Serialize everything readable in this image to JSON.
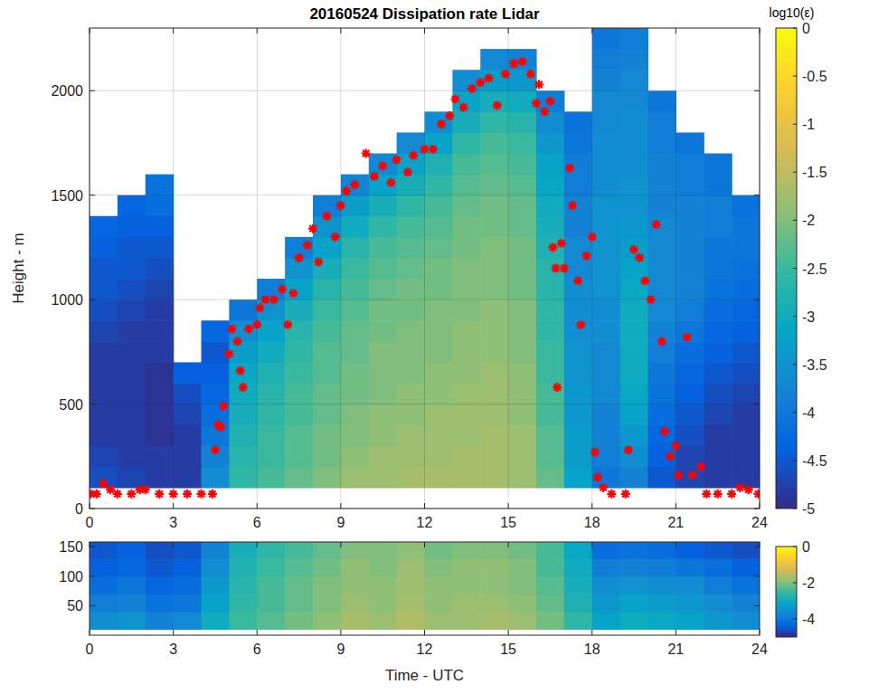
{
  "chart_data": [
    {
      "type": "heatmap",
      "title": "20160524 Dissipation rate Lidar",
      "y_label": "Height - m",
      "xlim": [
        0,
        24
      ],
      "ylim": [
        0,
        2300
      ],
      "xticks": [
        0,
        3,
        6,
        9,
        12,
        15,
        18,
        21,
        24
      ],
      "yticks": [
        0,
        500,
        1000,
        1500,
        2000
      ],
      "grid": true,
      "x_edges": [
        0,
        1,
        2,
        3,
        4,
        5,
        6,
        7,
        8,
        9,
        10,
        11,
        12,
        13,
        14,
        15,
        16,
        17,
        18,
        19,
        20,
        21,
        22,
        23,
        24
      ],
      "y_edges": [
        100,
        200,
        300,
        400,
        500,
        600,
        700,
        800,
        900,
        1000,
        1100,
        1200,
        1300,
        1400,
        1500,
        1600,
        1700,
        1800,
        1900,
        2000,
        2100,
        2200,
        2300
      ],
      "z": [
        [
          -4.6,
          -4.7,
          -4.8,
          -4.8,
          -4.8,
          -4.8,
          -4.8,
          -4.7,
          -4.6,
          -4.5,
          -4.5,
          -4.4,
          -4.3,
          null,
          null,
          null,
          null,
          null,
          null,
          null,
          null,
          null
        ],
        [
          -4.7,
          -4.8,
          -4.8,
          -4.8,
          -4.8,
          -4.8,
          -4.8,
          -4.8,
          -4.7,
          -4.6,
          -4.5,
          -4.5,
          -4.4,
          -4.3,
          null,
          null,
          null,
          null,
          null,
          null,
          null,
          null
        ],
        [
          -4.8,
          -4.8,
          -4.9,
          -4.9,
          -4.9,
          -4.9,
          -4.8,
          -4.8,
          -4.8,
          -4.7,
          -4.6,
          -4.5,
          -4.4,
          -4.2,
          -4.1,
          null,
          null,
          null,
          null,
          null,
          null,
          null
        ],
        [
          -4.8,
          -4.8,
          -4.8,
          -4.7,
          -4.6,
          -4.4,
          null,
          null,
          null,
          null,
          null,
          null,
          null,
          null,
          null,
          null,
          null,
          null,
          null,
          null,
          null,
          null
        ],
        [
          -3.6,
          -3.8,
          -4.0,
          -4.2,
          -4.3,
          -4.4,
          -4.5,
          -4.3,
          null,
          null,
          null,
          null,
          null,
          null,
          null,
          null,
          null,
          null,
          null,
          null,
          null,
          null
        ],
        [
          -2.6,
          -2.7,
          -2.8,
          -2.9,
          -3.0,
          -3.1,
          -3.3,
          -3.6,
          -4.0,
          null,
          null,
          null,
          null,
          null,
          null,
          null,
          null,
          null,
          null,
          null,
          null,
          null
        ],
        [
          -2.4,
          -2.5,
          -2.5,
          -2.6,
          -2.7,
          -2.8,
          -3.0,
          -3.2,
          -3.5,
          -3.9,
          null,
          null,
          null,
          null,
          null,
          null,
          null,
          null,
          null,
          null,
          null,
          null
        ],
        [
          -2.2,
          -2.3,
          -2.3,
          -2.4,
          -2.4,
          -2.5,
          -2.6,
          -2.7,
          -2.9,
          -3.2,
          -3.5,
          -3.9,
          null,
          null,
          null,
          null,
          null,
          null,
          null,
          null,
          null,
          null
        ],
        [
          -2.0,
          -2.1,
          -2.1,
          -2.2,
          -2.2,
          -2.3,
          -2.3,
          -2.4,
          -2.5,
          -2.7,
          -2.9,
          -3.2,
          -3.5,
          -3.9,
          null,
          null,
          null,
          null,
          null,
          null,
          null,
          null
        ],
        [
          -1.8,
          -1.9,
          -2.0,
          -2.0,
          -2.1,
          -2.1,
          -2.2,
          -2.2,
          -2.3,
          -2.4,
          -2.5,
          -2.7,
          -3.0,
          -3.3,
          -3.8,
          null,
          null,
          null,
          null,
          null,
          null,
          null
        ],
        [
          -1.8,
          -1.8,
          -1.9,
          -1.9,
          -2.0,
          -2.0,
          -2.0,
          -2.1,
          -2.1,
          -2.2,
          -2.3,
          -2.4,
          -2.6,
          -2.9,
          -3.2,
          -3.7,
          null,
          null,
          null,
          null,
          null,
          null
        ],
        [
          -1.7,
          -1.8,
          -1.8,
          -1.9,
          -1.9,
          -2.0,
          -2.0,
          -2.0,
          -2.1,
          -2.1,
          -2.2,
          -2.3,
          -2.4,
          -2.6,
          -2.9,
          -3.2,
          -3.7,
          null,
          null,
          null,
          null,
          null
        ],
        [
          -1.7,
          -1.8,
          -1.8,
          -1.8,
          -1.9,
          -1.9,
          -2.0,
          -2.0,
          -2.0,
          -2.1,
          -2.1,
          -2.2,
          -2.3,
          -2.4,
          -2.6,
          -2.8,
          -3.2,
          -3.6,
          null,
          null,
          null,
          null
        ],
        [
          -1.7,
          -1.7,
          -1.8,
          -1.8,
          -1.8,
          -1.9,
          -1.9,
          -1.9,
          -2.0,
          -2.0,
          -2.0,
          -2.1,
          -2.1,
          -2.2,
          -2.3,
          -2.4,
          -2.6,
          -2.9,
          -3.2,
          -3.6,
          null,
          null
        ],
        [
          -1.7,
          -1.7,
          -1.7,
          -1.8,
          -1.8,
          -1.8,
          -1.9,
          -1.9,
          -1.9,
          -2.0,
          -2.0,
          -2.0,
          -2.1,
          -2.1,
          -2.2,
          -2.3,
          -2.4,
          -2.6,
          -2.9,
          -3.3,
          -3.7,
          null
        ],
        [
          -1.8,
          -1.8,
          -1.8,
          -1.9,
          -1.9,
          -1.9,
          -2.0,
          -2.0,
          -2.0,
          -2.1,
          -2.1,
          -2.1,
          -2.2,
          -2.2,
          -2.3,
          -2.4,
          -2.5,
          -2.7,
          -3.0,
          -3.4,
          -3.8,
          null
        ],
        [
          -2.2,
          -2.3,
          -2.3,
          -2.4,
          -2.4,
          -2.5,
          -2.5,
          -2.6,
          -2.6,
          -2.7,
          -2.7,
          -2.8,
          -2.9,
          -3.0,
          -3.1,
          -3.2,
          -3.4,
          -3.6,
          -3.9,
          null,
          null,
          null
        ],
        [
          -3.2,
          -3.3,
          -3.3,
          -3.4,
          -3.4,
          -3.5,
          -3.5,
          -3.6,
          -3.6,
          -3.6,
          -3.7,
          -3.7,
          -3.8,
          -3.8,
          -3.9,
          -3.9,
          -4.0,
          -4.1,
          null,
          null,
          null,
          null
        ],
        [
          -4.0,
          -3.9,
          -3.8,
          -3.8,
          -3.7,
          -3.7,
          -3.7,
          -3.6,
          -3.6,
          -3.5,
          -3.5,
          -3.5,
          -3.5,
          -3.5,
          -3.6,
          -3.6,
          -3.6,
          -3.7,
          -3.7,
          -3.8,
          -3.9,
          -4.0
        ],
        [
          -3.8,
          -3.6,
          -3.4,
          -3.2,
          -3.1,
          -3.0,
          -3.0,
          -3.0,
          -3.0,
          -3.1,
          -3.2,
          -3.3,
          -3.4,
          -3.5,
          -3.5,
          -3.6,
          -3.6,
          -3.6,
          -3.7,
          -3.7,
          -3.8,
          -3.9
        ],
        [
          -4.5,
          -4.4,
          -4.3,
          -4.2,
          -4.1,
          -4.0,
          -3.9,
          -3.8,
          -3.7,
          -3.7,
          -3.7,
          -3.7,
          -3.7,
          -3.8,
          -3.8,
          -3.8,
          -3.9,
          -3.9,
          -4.0,
          null,
          null,
          null
        ],
        [
          -4.7,
          -4.7,
          -4.6,
          -4.5,
          -4.4,
          -4.3,
          -4.2,
          -4.0,
          -3.9,
          -3.8,
          -3.8,
          -3.8,
          -3.8,
          -3.8,
          -3.9,
          -3.9,
          -4.0,
          null,
          null,
          null,
          null,
          null
        ],
        [
          -4.8,
          -4.8,
          -4.8,
          -4.7,
          -4.6,
          -4.5,
          -4.4,
          -4.3,
          -4.2,
          -4.1,
          -4.0,
          -4.0,
          -3.9,
          -3.9,
          -4.0,
          -4.0,
          null,
          null,
          null,
          null,
          null,
          null
        ],
        [
          -4.8,
          -4.8,
          -4.8,
          -4.8,
          -4.7,
          -4.6,
          -4.5,
          -4.4,
          -4.3,
          -4.2,
          -4.1,
          -4.0,
          -4.0,
          -4.1,
          null,
          null,
          null,
          null,
          null,
          null,
          null,
          null
        ]
      ],
      "colorbar": {
        "title": "log10(ε)",
        "range": [
          -5,
          0
        ],
        "ticks": [
          0,
          -0.5,
          -1,
          -1.5,
          -2,
          -2.5,
          -3,
          -3.5,
          -4,
          -4.5,
          -5
        ]
      },
      "series": [
        {
          "type": "scatter",
          "color": "#ff0000",
          "marker": "asterisk",
          "x": [
            0.05,
            0.25,
            0.5,
            0.75,
            1,
            1.5,
            1.8,
            2,
            2.5,
            3,
            3.5,
            4,
            4.4,
            4.5,
            4.6,
            4.7,
            4.8,
            5,
            5.1,
            5.3,
            5.4,
            5.5,
            5.7,
            6,
            6.1,
            6.3,
            6.6,
            6.9,
            7.1,
            7.3,
            7.5,
            7.8,
            8,
            8.2,
            8.5,
            8.8,
            9,
            9.2,
            9.5,
            9.9,
            10.2,
            10.5,
            10.8,
            11,
            11.4,
            11.6,
            12,
            12.3,
            12.6,
            12.9,
            13.1,
            13.4,
            13.7,
            14,
            14.3,
            14.6,
            14.9,
            15.2,
            15.5,
            15.8,
            16,
            16.1,
            16.3,
            16.5,
            16.6,
            16.7,
            16.75,
            16.9,
            17,
            17.2,
            17.3,
            17.5,
            17.6,
            17.8,
            18,
            18.1,
            18.2,
            18.4,
            18.7,
            19.2,
            19.3,
            19.5,
            19.7,
            19.9,
            20.1,
            20.3,
            20.5,
            20.6,
            20.8,
            21,
            21.1,
            21.4,
            21.6,
            21.9,
            22.1,
            22.5,
            23,
            23.3,
            23.6,
            23.95
          ],
          "y": [
            70,
            70,
            120,
            90,
            70,
            70,
            90,
            90,
            70,
            70,
            70,
            70,
            70,
            280,
            400,
            390,
            490,
            740,
            860,
            800,
            660,
            580,
            860,
            880,
            960,
            1000,
            1000,
            1050,
            880,
            1030,
            1200,
            1260,
            1340,
            1180,
            1400,
            1300,
            1450,
            1520,
            1550,
            1700,
            1590,
            1640,
            1560,
            1670,
            1610,
            1690,
            1720,
            1720,
            1840,
            1880,
            1960,
            1920,
            2010,
            2040,
            2060,
            1930,
            2080,
            2130,
            2140,
            2080,
            1940,
            2030,
            1900,
            1950,
            1250,
            1150,
            580,
            1270,
            1150,
            1630,
            1450,
            1090,
            880,
            1210,
            1300,
            270,
            150,
            100,
            70,
            70,
            280,
            1240,
            1200,
            1090,
            1000,
            1360,
            800,
            370,
            250,
            300,
            160,
            820,
            160,
            200,
            70,
            70,
            70,
            100,
            90,
            70
          ]
        }
      ]
    },
    {
      "type": "heatmap",
      "x_label": "Time - UTC",
      "xlim": [
        0,
        24
      ],
      "ylim": [
        0,
        158
      ],
      "xticks": [
        0,
        3,
        6,
        9,
        12,
        15,
        18,
        21,
        24
      ],
      "yticks": [
        50,
        100,
        150
      ],
      "grid": false,
      "x_edges": [
        0,
        1,
        2,
        3,
        4,
        5,
        6,
        7,
        8,
        9,
        10,
        11,
        12,
        13,
        14,
        15,
        16,
        17,
        18,
        19,
        20,
        21,
        22,
        23,
        24
      ],
      "y_edges": [
        10,
        40,
        70,
        100,
        130,
        158
      ],
      "z": [
        [
          -3.6,
          -3.9,
          -4.2,
          -4.4,
          -4.5
        ],
        [
          -3.5,
          -3.8,
          -4.0,
          -4.3,
          -4.4
        ],
        [
          -3.8,
          -4.1,
          -4.3,
          -4.5,
          -4.6
        ],
        [
          -3.7,
          -4.0,
          -4.2,
          -4.4,
          -4.5
        ],
        [
          -3.0,
          -3.2,
          -3.4,
          -3.6,
          -3.8
        ],
        [
          -2.5,
          -2.6,
          -2.7,
          -2.8,
          -2.9
        ],
        [
          -2.3,
          -2.4,
          -2.4,
          -2.5,
          -2.6
        ],
        [
          -2.1,
          -2.2,
          -2.2,
          -2.3,
          -2.4
        ],
        [
          -1.9,
          -2.0,
          -2.0,
          -2.1,
          -2.2
        ],
        [
          -1.7,
          -1.8,
          -1.9,
          -1.9,
          -2.0
        ],
        [
          -1.8,
          -1.9,
          -1.9,
          -2.0,
          -2.0
        ],
        [
          -1.6,
          -1.7,
          -1.8,
          -1.8,
          -1.9
        ],
        [
          -1.8,
          -1.9,
          -1.9,
          -2.0,
          -2.1
        ],
        [
          -1.8,
          -1.8,
          -1.9,
          -1.9,
          -2.0
        ],
        [
          -1.7,
          -1.8,
          -1.9,
          -1.9,
          -2.0
        ],
        [
          -1.8,
          -1.9,
          -2.0,
          -2.0,
          -2.1
        ],
        [
          -2.1,
          -2.2,
          -2.3,
          -2.4,
          -2.4
        ],
        [
          -2.6,
          -2.8,
          -2.9,
          -3.0,
          -3.1
        ],
        [
          -3.2,
          -3.4,
          -3.6,
          -3.9,
          -4.2
        ],
        [
          -3.0,
          -3.2,
          -3.5,
          -3.8,
          -4.1
        ],
        [
          -3.1,
          -3.3,
          -3.6,
          -3.9,
          -4.2
        ],
        [
          -3.2,
          -3.4,
          -3.6,
          -4.0,
          -4.4
        ],
        [
          -3.4,
          -3.6,
          -3.9,
          -4.2,
          -4.5
        ],
        [
          -3.6,
          -3.8,
          -4.1,
          -4.4,
          -4.6
        ]
      ],
      "colorbar": {
        "range": [
          -5,
          0
        ],
        "ticks": [
          0,
          -2,
          -4
        ]
      }
    }
  ]
}
